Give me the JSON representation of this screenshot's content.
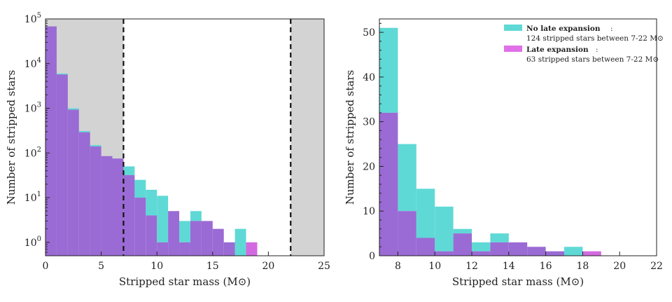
{
  "chart_data": [
    {
      "type": "bar",
      "scale": "log",
      "xlabel": "Stripped star mass (M⊙)",
      "ylabel": "Number of stripped stars",
      "xlim": [
        0,
        25
      ],
      "ylim": [
        0.5,
        100000
      ],
      "xticks": [
        "0",
        "5",
        "10",
        "15",
        "20",
        "25"
      ],
      "yticks": [
        {
          "base": "10",
          "exp": "0"
        },
        {
          "base": "10",
          "exp": "1"
        },
        {
          "base": "10",
          "exp": "2"
        },
        {
          "base": "10",
          "exp": "3"
        },
        {
          "base": "10",
          "exp": "4"
        },
        {
          "base": "10",
          "exp": "5"
        }
      ],
      "shaded_regions": [
        [
          0,
          7
        ],
        [
          22,
          25
        ]
      ],
      "vlines": [
        7,
        22
      ],
      "bin_edges": [
        0,
        1,
        2,
        3,
        4,
        5,
        6,
        7,
        8,
        9,
        10,
        11,
        12,
        13,
        14,
        15,
        16,
        17,
        18,
        19
      ],
      "series": [
        {
          "color": "#5fd9d6",
          "values": [
            68000,
            6000,
            1000,
            310,
            150,
            85,
            75,
            50,
            25,
            15,
            11,
            5,
            3,
            5,
            3,
            2,
            1,
            2,
            0
          ]
        },
        {
          "color": "#d36ae0",
          "values": [
            68000,
            5700,
            930,
            290,
            140,
            85,
            75,
            32,
            10,
            4,
            1,
            5,
            1,
            3,
            3,
            2,
            1,
            0,
            1
          ]
        }
      ]
    },
    {
      "type": "bar",
      "xlabel": "Stripped star mass (M⊙)",
      "ylabel": "Number of stripped stars",
      "xlim": [
        7,
        22
      ],
      "ylim": [
        0,
        53
      ],
      "xticks": [
        "8",
        "10",
        "12",
        "14",
        "16",
        "18",
        "20",
        "22"
      ],
      "yticks": [
        "0",
        "10",
        "20",
        "30",
        "40",
        "50"
      ],
      "bin_edges": [
        7,
        8,
        9,
        10,
        11,
        12,
        13,
        14,
        15,
        16,
        17,
        18,
        19
      ],
      "legend": {
        "placement": "top-right",
        "entries": [
          {
            "title": "No late expansion",
            "text": "124 stripped stars between 7-22 M⊙",
            "color": "#5fd9d6"
          },
          {
            "title": "Late expansion",
            "text": "63 stripped stars between 7-22 M⊙",
            "color": "#e070e8"
          }
        ]
      },
      "series": [
        {
          "color": "#5fd9d6",
          "values": [
            51,
            25,
            15,
            11,
            6,
            3,
            5,
            3,
            2,
            1,
            2,
            0
          ]
        },
        {
          "color": "#d36ae0",
          "values": [
            32,
            10,
            4,
            1,
            5,
            1,
            3,
            3,
            2,
            1,
            0,
            1
          ]
        }
      ]
    }
  ]
}
